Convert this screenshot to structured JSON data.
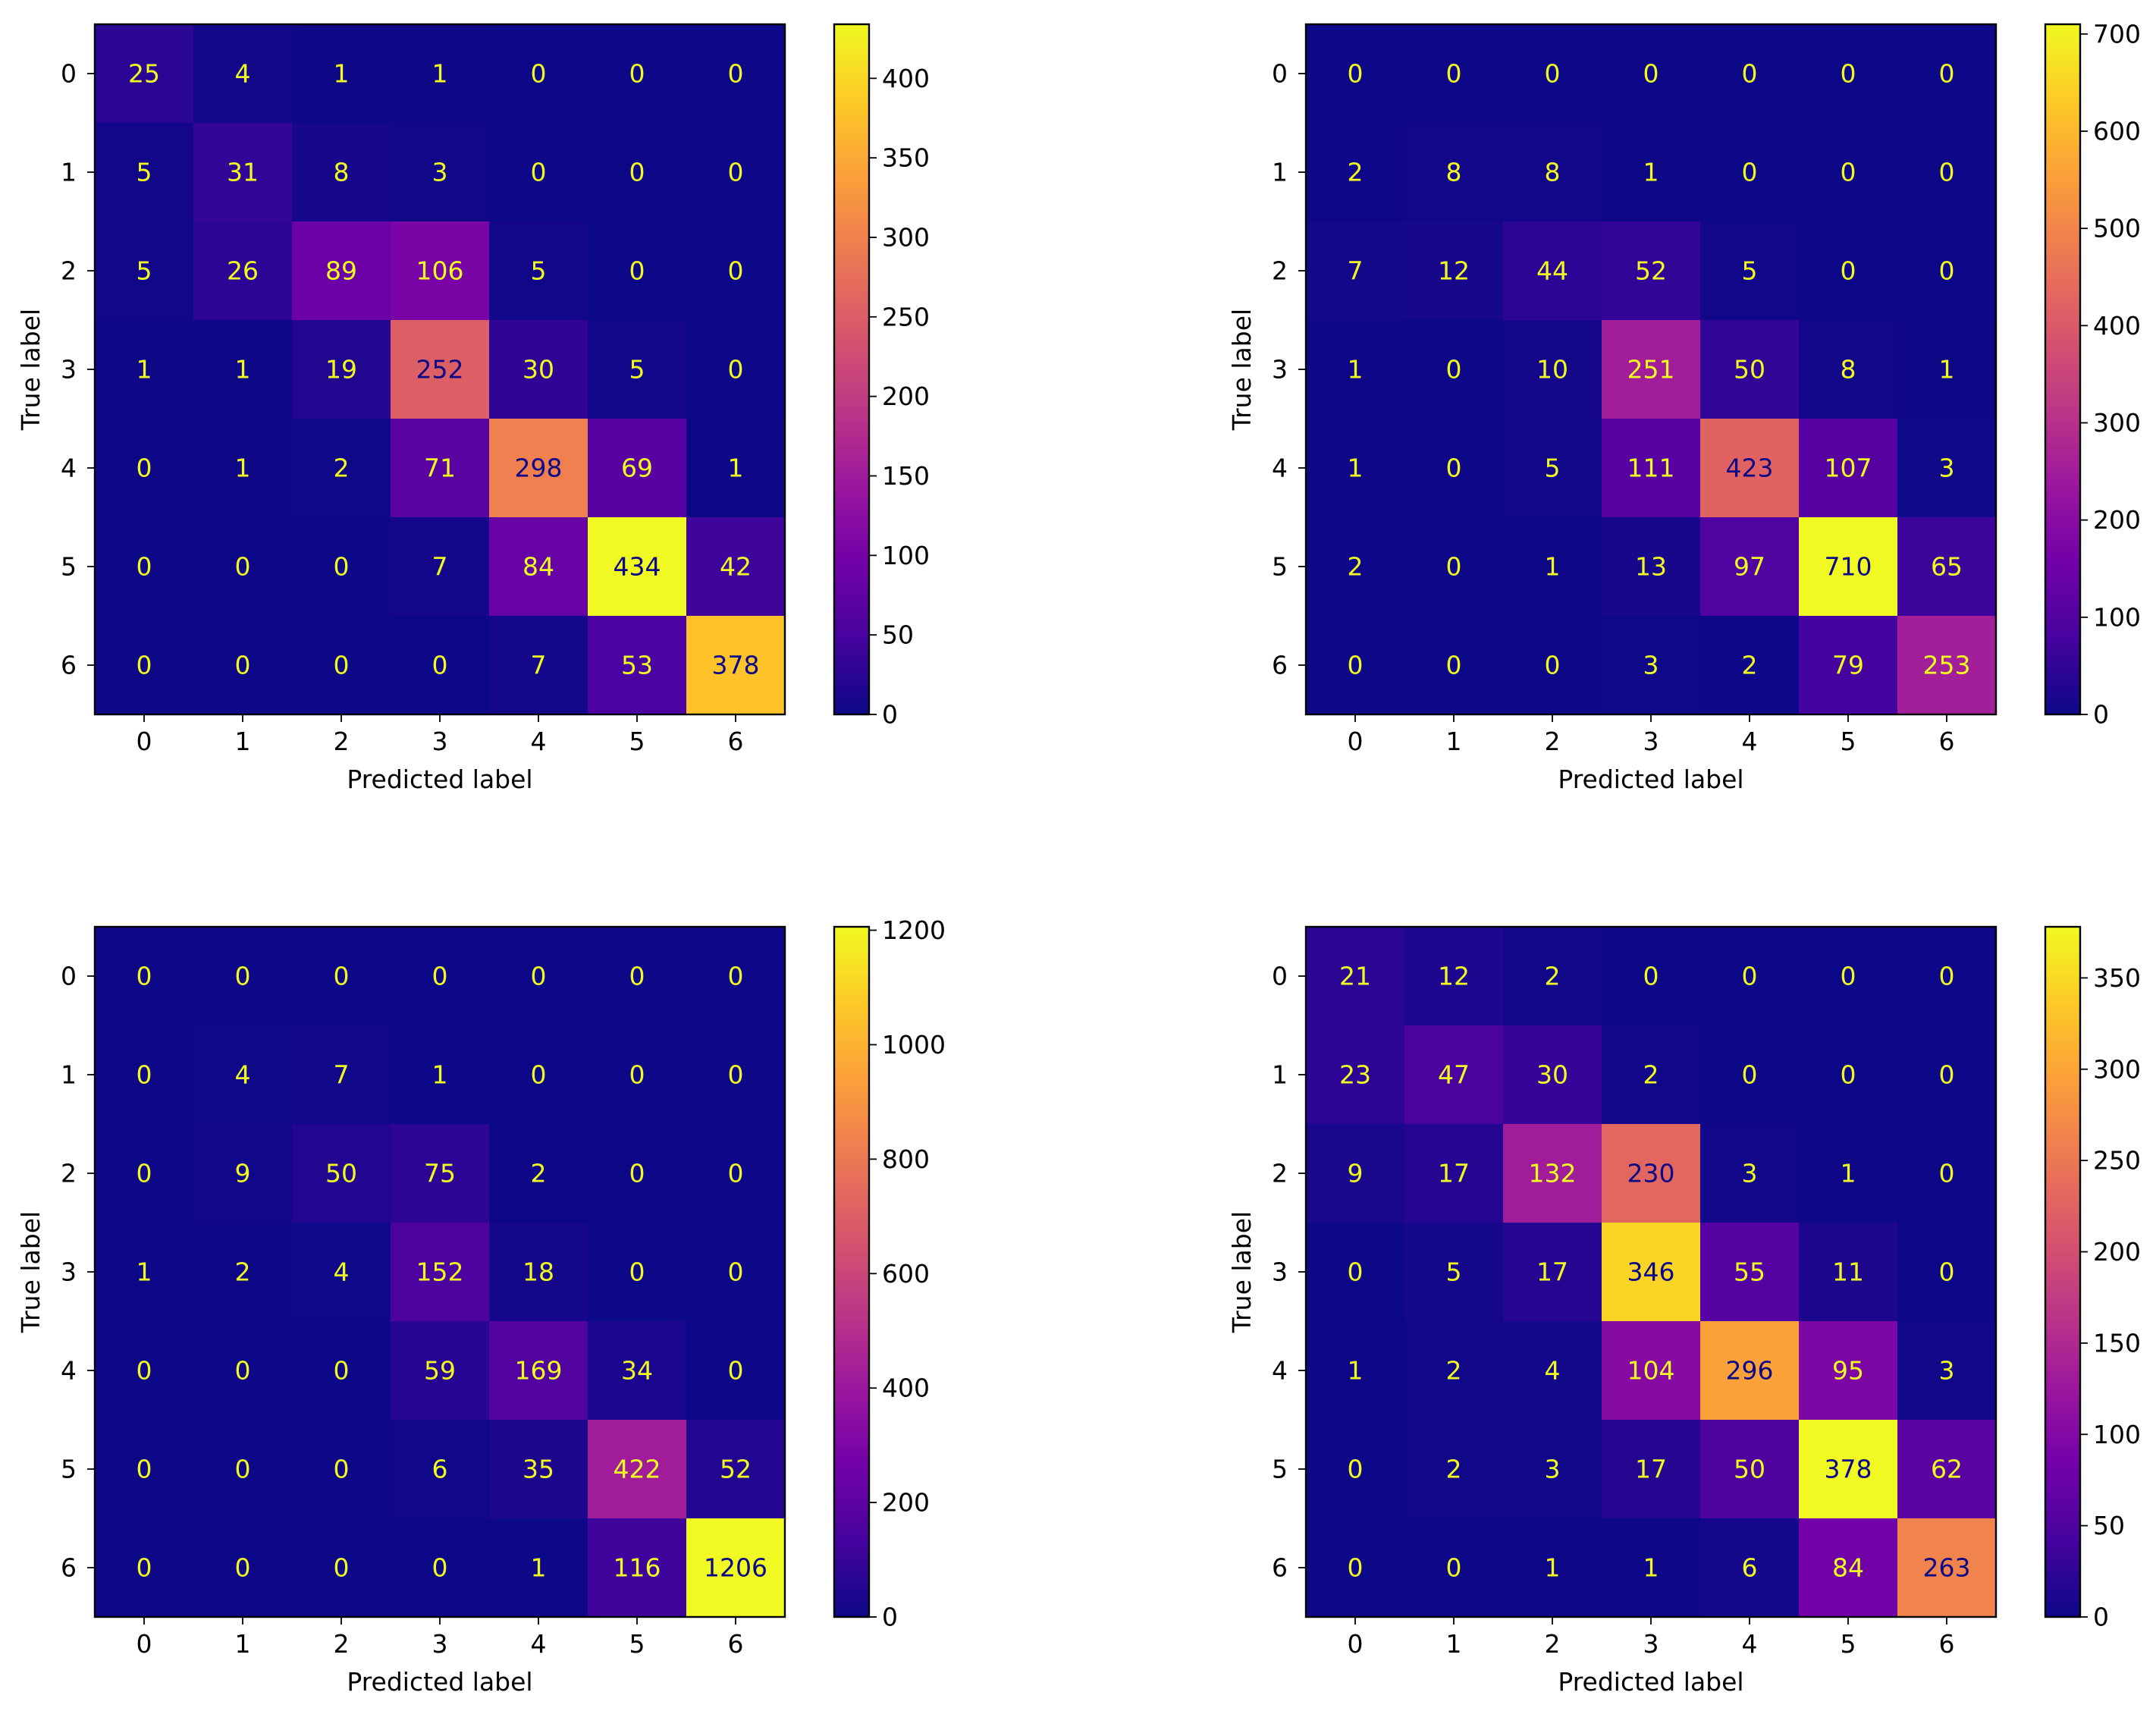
{
  "figure": {
    "colormap": "plasma",
    "colormap_stops": [
      "#0d0887",
      "#46039f",
      "#7201a8",
      "#9c179e",
      "#bd3786",
      "#d8576b",
      "#ed7953",
      "#fb9f3a",
      "#fdca26",
      "#f0f921"
    ]
  },
  "chart_data": [
    {
      "type": "heatmap",
      "title": "",
      "xlabel": "Predicted label",
      "ylabel": "True label",
      "labels": [
        "0",
        "1",
        "2",
        "3",
        "4",
        "5",
        "6"
      ],
      "matrix": [
        [
          25,
          4,
          1,
          1,
          0,
          0,
          0
        ],
        [
          5,
          31,
          8,
          3,
          0,
          0,
          0
        ],
        [
          5,
          26,
          89,
          106,
          5,
          0,
          0
        ],
        [
          1,
          1,
          19,
          252,
          30,
          5,
          0
        ],
        [
          0,
          1,
          2,
          71,
          298,
          69,
          1
        ],
        [
          0,
          0,
          0,
          7,
          84,
          434,
          42
        ],
        [
          0,
          0,
          0,
          0,
          7,
          53,
          378
        ]
      ],
      "colorbar_range": [
        0,
        434
      ],
      "colorbar_ticks": [
        0,
        50,
        100,
        150,
        200,
        250,
        300,
        350,
        400
      ]
    },
    {
      "type": "heatmap",
      "title": "",
      "xlabel": "Predicted label",
      "ylabel": "True label",
      "labels": [
        "0",
        "1",
        "2",
        "3",
        "4",
        "5",
        "6"
      ],
      "matrix": [
        [
          0,
          0,
          0,
          0,
          0,
          0,
          0
        ],
        [
          2,
          8,
          8,
          1,
          0,
          0,
          0
        ],
        [
          7,
          12,
          44,
          52,
          5,
          0,
          0
        ],
        [
          1,
          0,
          10,
          251,
          50,
          8,
          1
        ],
        [
          1,
          0,
          5,
          111,
          423,
          107,
          3
        ],
        [
          2,
          0,
          1,
          13,
          97,
          710,
          65
        ],
        [
          0,
          0,
          0,
          3,
          2,
          79,
          253
        ]
      ],
      "colorbar_range": [
        0,
        710
      ],
      "colorbar_ticks": [
        0,
        100,
        200,
        300,
        400,
        500,
        600,
        700
      ]
    },
    {
      "type": "heatmap",
      "title": "",
      "xlabel": "Predicted label",
      "ylabel": "True label",
      "labels": [
        "0",
        "1",
        "2",
        "3",
        "4",
        "5",
        "6"
      ],
      "matrix": [
        [
          0,
          0,
          0,
          0,
          0,
          0,
          0
        ],
        [
          0,
          4,
          7,
          1,
          0,
          0,
          0
        ],
        [
          0,
          9,
          50,
          75,
          2,
          0,
          0
        ],
        [
          1,
          2,
          4,
          152,
          18,
          0,
          0
        ],
        [
          0,
          0,
          0,
          59,
          169,
          34,
          0
        ],
        [
          0,
          0,
          0,
          6,
          35,
          422,
          52
        ],
        [
          0,
          0,
          0,
          0,
          1,
          116,
          1206
        ]
      ],
      "colorbar_range": [
        0,
        1206
      ],
      "colorbar_ticks": [
        0,
        200,
        400,
        600,
        800,
        1000,
        1200
      ]
    },
    {
      "type": "heatmap",
      "title": "",
      "xlabel": "Predicted label",
      "ylabel": "True label",
      "labels": [
        "0",
        "1",
        "2",
        "3",
        "4",
        "5",
        "6"
      ],
      "matrix": [
        [
          21,
          12,
          2,
          0,
          0,
          0,
          0
        ],
        [
          23,
          47,
          30,
          2,
          0,
          0,
          0
        ],
        [
          9,
          17,
          132,
          230,
          3,
          1,
          0
        ],
        [
          0,
          5,
          17,
          346,
          55,
          11,
          0
        ],
        [
          1,
          2,
          4,
          104,
          296,
          95,
          3
        ],
        [
          0,
          2,
          3,
          17,
          50,
          378,
          62
        ],
        [
          0,
          0,
          1,
          1,
          6,
          84,
          263
        ]
      ],
      "colorbar_range": [
        0,
        378
      ],
      "colorbar_ticks": [
        0,
        50,
        100,
        150,
        200,
        250,
        300,
        350
      ]
    }
  ]
}
